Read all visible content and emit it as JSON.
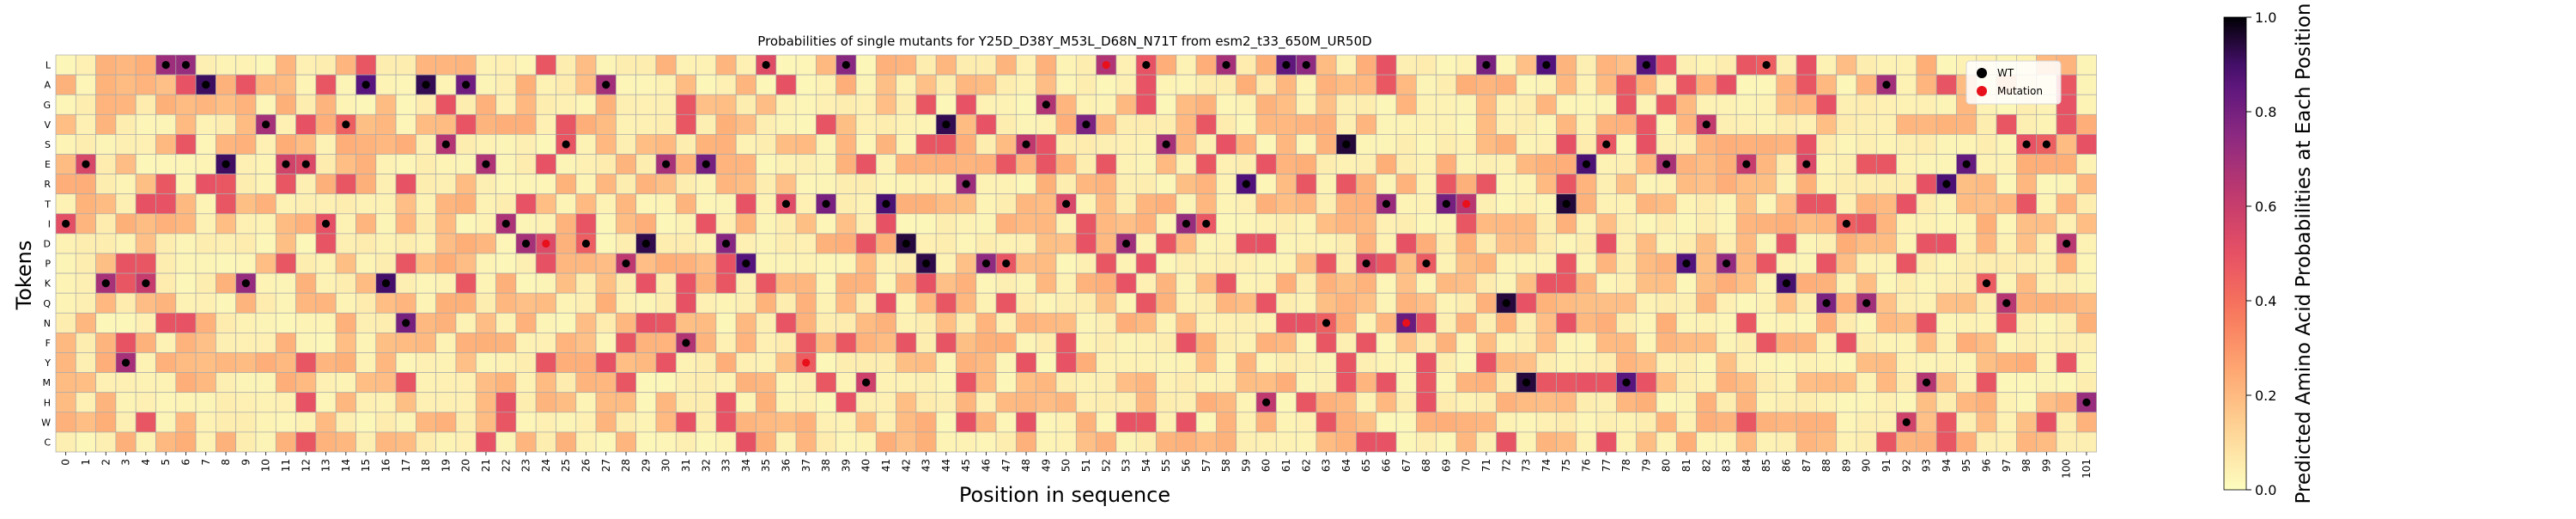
{
  "chart_data": {
    "type": "heatmap",
    "title": "Probabilities of single mutants for Y25D_D38Y_M53L_D68N_N71T from esm2_t33_650M_UR50D",
    "xlabel": "Position in sequence",
    "ylabel": "Tokens",
    "colorbar_label": "Predicted Amino Acid Probabilities at Each Position",
    "colorbar_range": [
      0.0,
      1.0
    ],
    "colorbar_ticks": [
      "0.0",
      "0.2",
      "0.4",
      "0.6",
      "0.8",
      "1.0"
    ],
    "colormap": "magma_r",
    "tokens": [
      "L",
      "A",
      "G",
      "V",
      "S",
      "E",
      "R",
      "T",
      "I",
      "D",
      "P",
      "K",
      "Q",
      "N",
      "F",
      "Y",
      "M",
      "H",
      "W",
      "C"
    ],
    "positions": [
      0,
      1,
      2,
      3,
      4,
      5,
      6,
      7,
      8,
      9,
      10,
      11,
      12,
      13,
      14,
      15,
      16,
      17,
      18,
      19,
      20,
      21,
      22,
      23,
      24,
      25,
      26,
      27,
      28,
      29,
      30,
      31,
      32,
      33,
      34,
      35,
      36,
      37,
      38,
      39,
      40,
      41,
      42,
      43,
      44,
      45,
      46,
      47,
      48,
      49,
      50,
      51,
      52,
      53,
      54,
      55,
      56,
      57,
      58,
      59,
      60,
      61,
      62,
      63,
      64,
      65,
      66,
      67,
      68,
      69,
      70,
      71,
      72,
      73,
      74,
      75,
      76,
      77,
      78,
      79,
      80,
      81,
      82,
      83,
      84,
      85,
      86,
      87,
      88,
      89,
      90,
      91,
      92,
      93,
      94,
      95,
      96,
      97,
      98,
      99,
      100,
      101
    ],
    "legend": {
      "entries": [
        "WT",
        "Mutation"
      ],
      "placement": "top-right"
    },
    "wild_type_residue_index_by_position": [
      8,
      5,
      11,
      15,
      11,
      0,
      0,
      1,
      5,
      11,
      3,
      5,
      5,
      8,
      3,
      1,
      11,
      13,
      1,
      4,
      1,
      5,
      8,
      9,
      9,
      4,
      9,
      1,
      10,
      9,
      5,
      14,
      5,
      9,
      10,
      0,
      7,
      15,
      7,
      0,
      16,
      7,
      9,
      10,
      3,
      6,
      10,
      10,
      4,
      2,
      7,
      3,
      0,
      9,
      0,
      4,
      8,
      8,
      0,
      6,
      17,
      0,
      0,
      13,
      4,
      10,
      7,
      13,
      10,
      7,
      7,
      0,
      12,
      16,
      0,
      7,
      5,
      4,
      16,
      0,
      5,
      10,
      3,
      10,
      5,
      0,
      11,
      5,
      12,
      8,
      12,
      1,
      18,
      16,
      6,
      5,
      11,
      12,
      4,
      4,
      9,
      17
    ],
    "mutation_positions": [
      24,
      37,
      52,
      67,
      70
    ],
    "colors": {
      "wt_dot": "#000000",
      "mutation_dot": "#e8101a",
      "grid_line": "#aaaaaa"
    }
  }
}
